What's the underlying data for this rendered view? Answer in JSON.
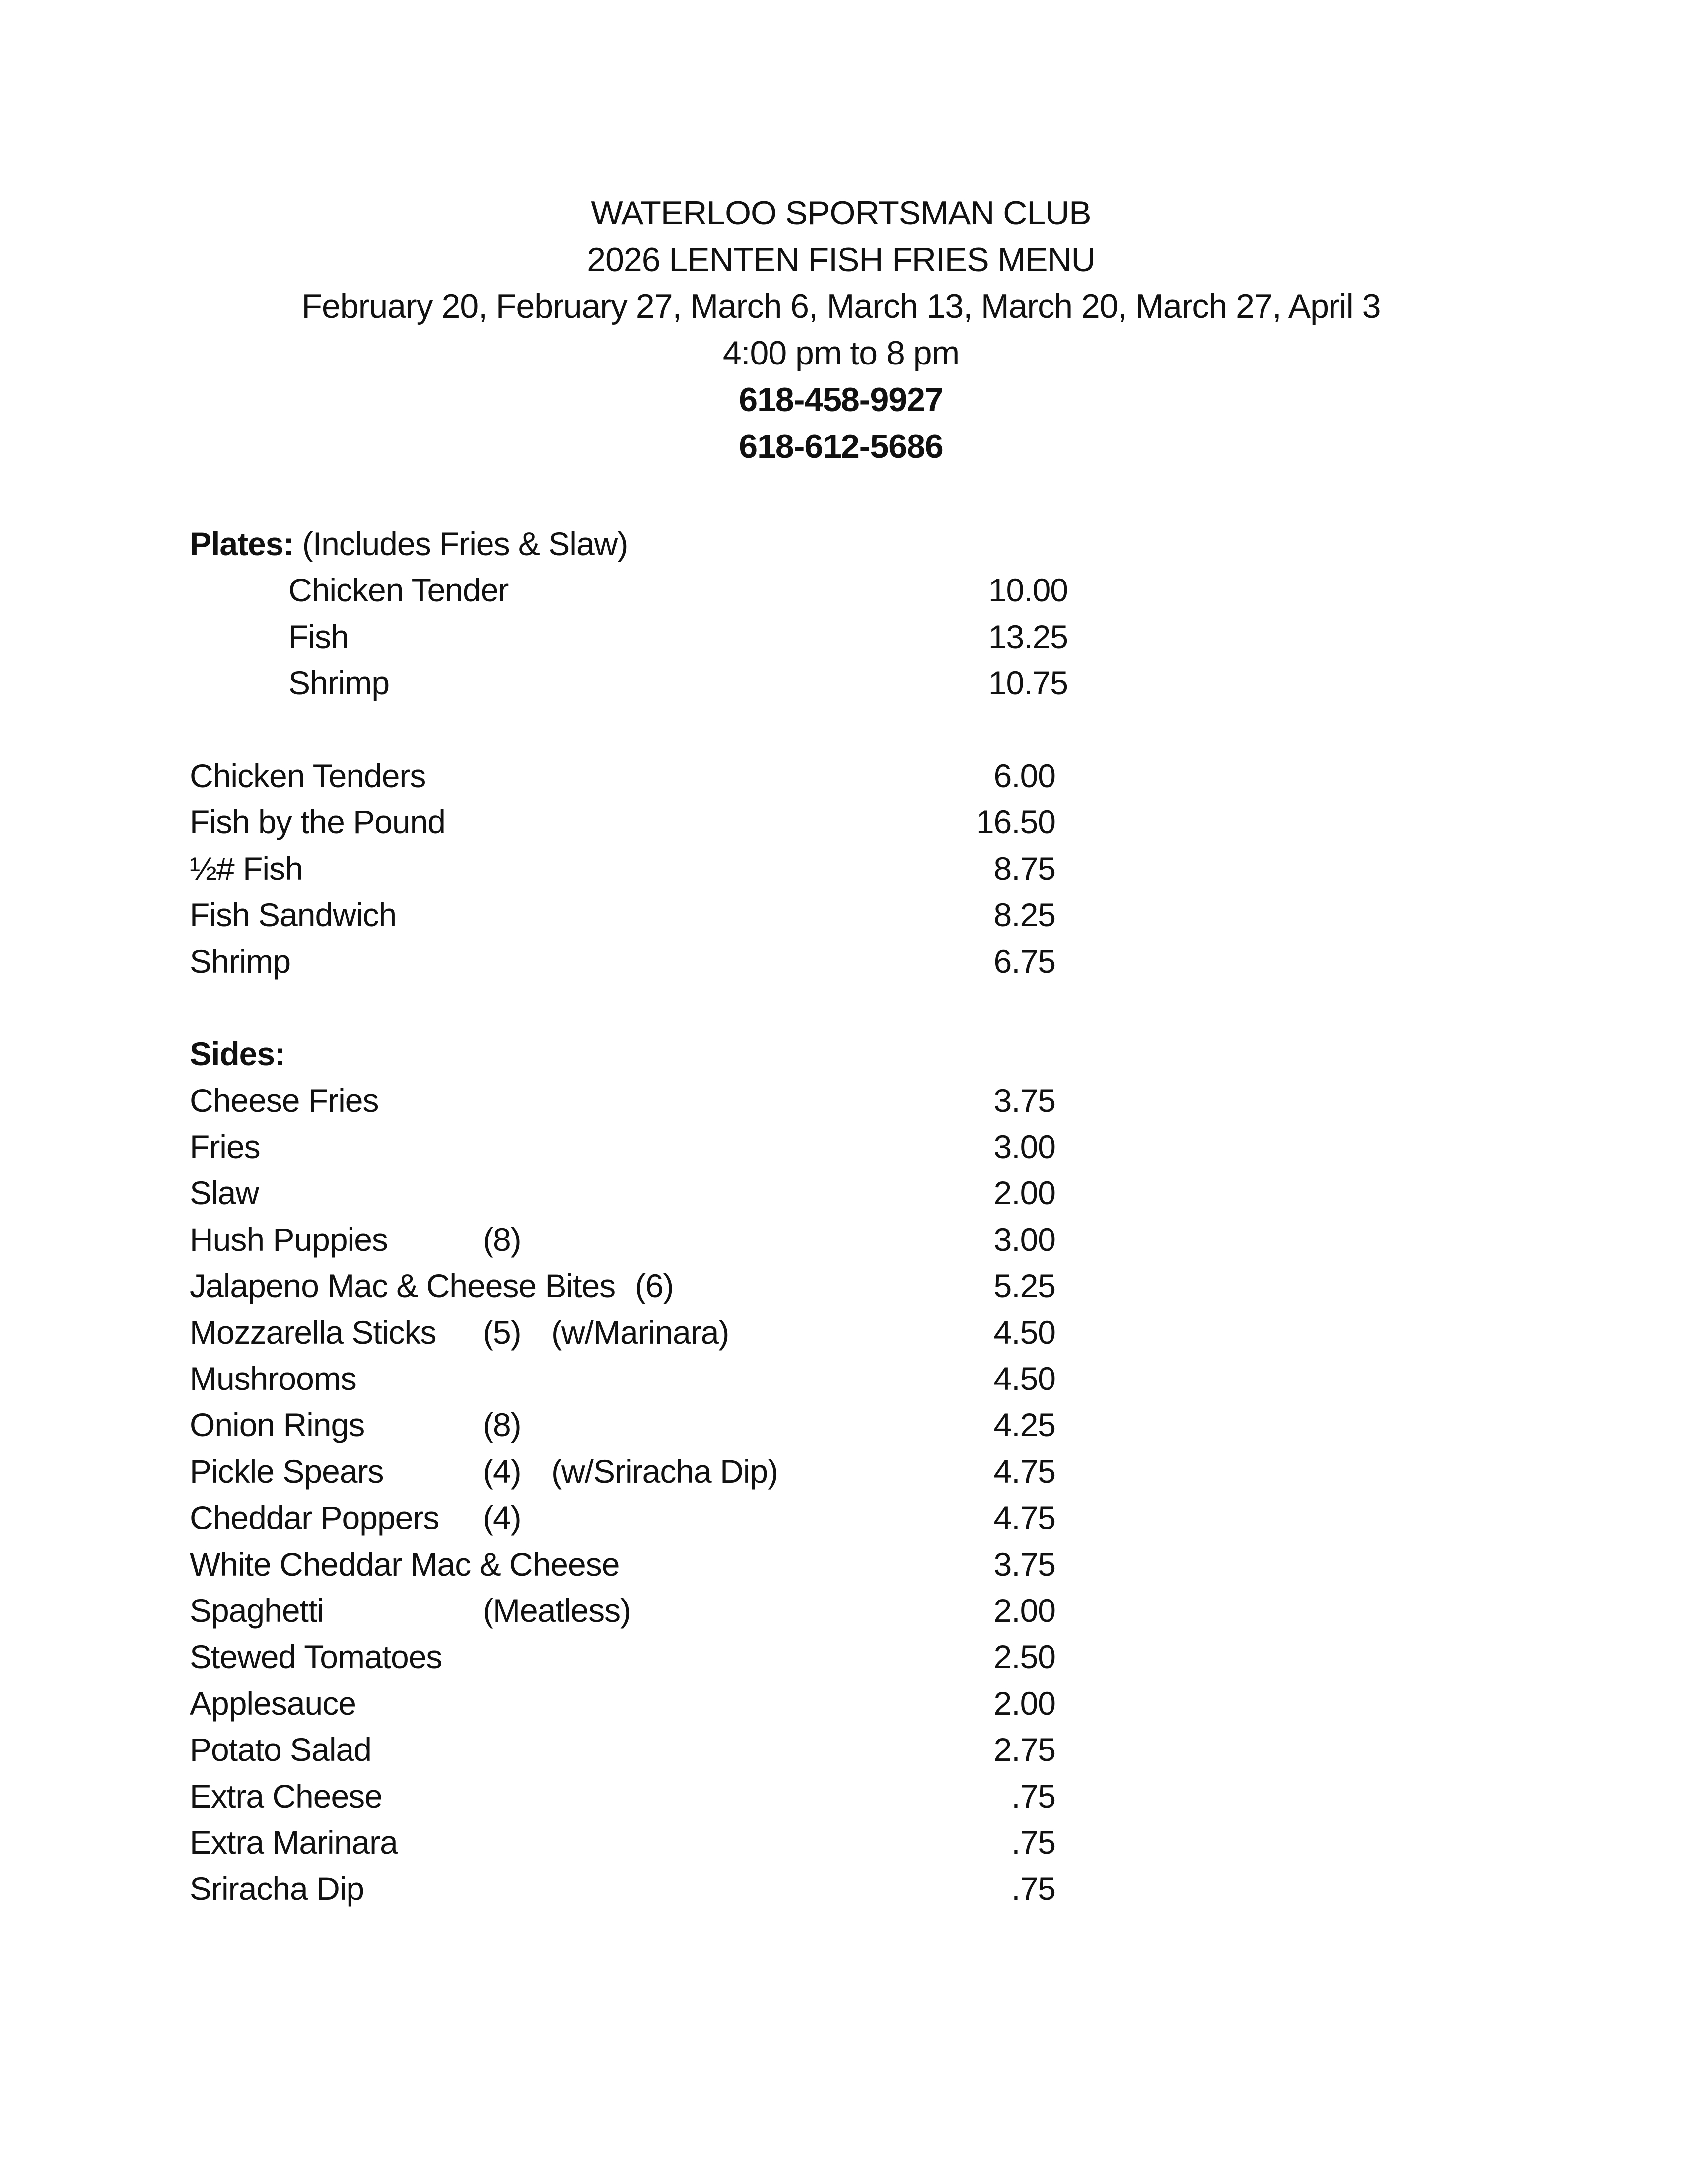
{
  "header": {
    "club": "WATERLOO SPORTSMAN CLUB",
    "title": "2026 LENTEN FISH FRIES MENU",
    "dates": "February 20, February 27, March 6, March 13, March 20, March 27, April 3",
    "hours": "4:00 pm to 8 pm",
    "phone1": "618-458-9927",
    "phone2": "618-612-5686"
  },
  "plates": {
    "label": "Plates:",
    "note": "(Includes Fries & Slaw)",
    "items": [
      {
        "name": "Chicken Tender",
        "price": "10.00"
      },
      {
        "name": "Fish",
        "price": "13.25"
      },
      {
        "name": "Shrimp",
        "price": "10.75"
      }
    ]
  },
  "entrees": [
    {
      "name": "Chicken Tenders",
      "price": "6.00"
    },
    {
      "name": "Fish by the Pound",
      "price": "16.50"
    },
    {
      "name": "½# Fish",
      "price": "8.75"
    },
    {
      "name": "Fish Sandwich",
      "price": "8.25"
    },
    {
      "name": "Shrimp",
      "price": "6.75"
    }
  ],
  "sides": {
    "label": "Sides:",
    "items": [
      {
        "name": "Cheese Fries",
        "price": "3.75"
      },
      {
        "name": "Fries",
        "price": "3.00"
      },
      {
        "name": "Slaw",
        "price": "2.00"
      },
      {
        "name": "Hush Puppies",
        "qty": "(8)",
        "price": "3.00"
      },
      {
        "name": "Jalapeno Mac & Cheese Bites",
        "qty": "(6)",
        "price": "5.25"
      },
      {
        "name": "Mozzarella Sticks",
        "qty": "(5)",
        "note": "(w/Marinara)",
        "price": "4.50"
      },
      {
        "name": "Mushrooms",
        "price": "4.50"
      },
      {
        "name": "Onion Rings",
        "qty": "(8)",
        "price": "4.25"
      },
      {
        "name": "Pickle Spears",
        "qty": "(4)",
        "note": "(w/Sriracha Dip)",
        "price": "4.75"
      },
      {
        "name": "Cheddar Poppers",
        "qty": "(4)",
        "price": "4.75"
      },
      {
        "name": "White Cheddar Mac & Cheese",
        "price": "3.75"
      },
      {
        "name": "Spaghetti",
        "qty": "(Meatless)",
        "price": "2.00"
      },
      {
        "name": "Stewed Tomatoes",
        "price": "2.50"
      },
      {
        "name": "Applesauce",
        "price": "2.00"
      },
      {
        "name": "Potato Salad",
        "price": "2.75"
      },
      {
        "name": "Extra Cheese",
        "price": ".75"
      },
      {
        "name": "Extra Marinara",
        "price": ".75"
      },
      {
        "name": "Sriracha Dip",
        "price": ".75"
      }
    ]
  }
}
